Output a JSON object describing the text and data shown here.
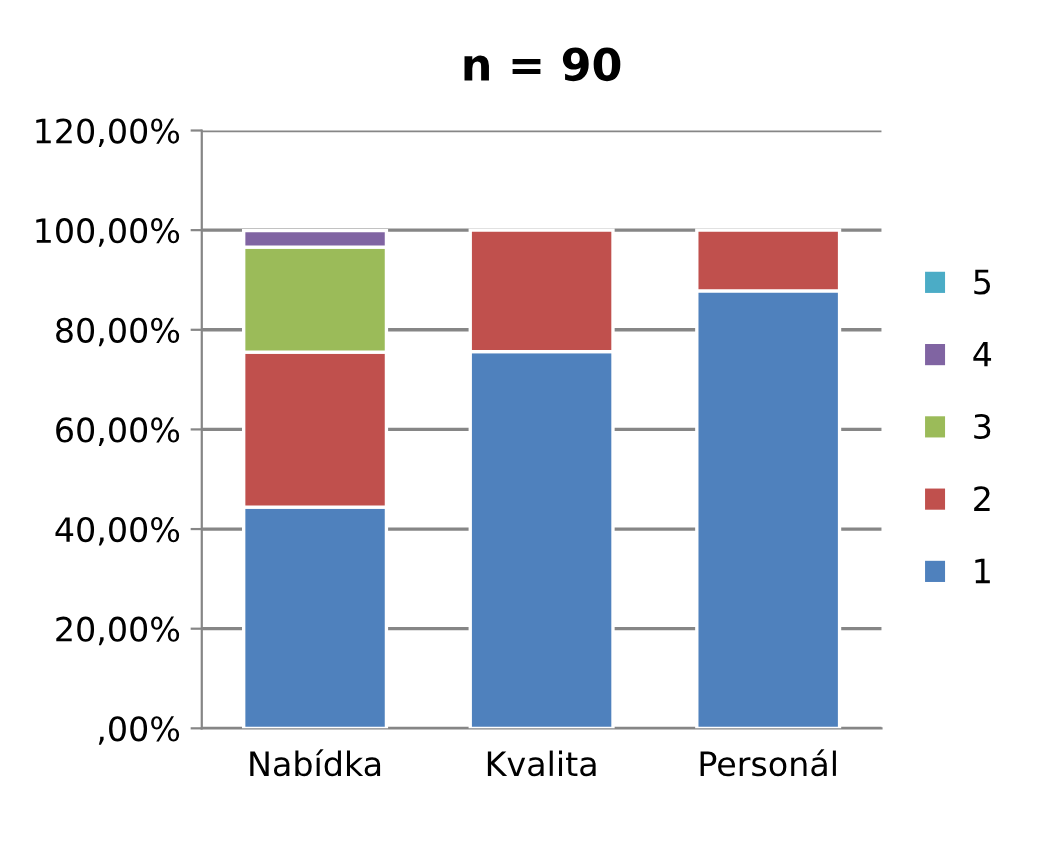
{
  "chart_data": {
    "type": "bar",
    "stacked": true,
    "title": "n = 90",
    "categories": [
      "Nabídka",
      "Kvalita",
      "Personál"
    ],
    "series": [
      {
        "name": "1",
        "color": "#4f81bd",
        "values": [
          44.4,
          75.6,
          87.8
        ]
      },
      {
        "name": "2",
        "color": "#c0504d",
        "values": [
          31.1,
          24.4,
          12.2
        ]
      },
      {
        "name": "3",
        "color": "#9bbb59",
        "values": [
          21.1,
          null,
          null
        ]
      },
      {
        "name": "4",
        "color": "#8064a2",
        "values": [
          3.3,
          null,
          null
        ]
      },
      {
        "name": "5",
        "color": "#4bacc6",
        "values": [
          null,
          null,
          null
        ]
      }
    ],
    "ylim": [
      0,
      120
    ],
    "yticks": [
      {
        "value": 0,
        "label": ",00%"
      },
      {
        "value": 20,
        "label": "20,00%"
      },
      {
        "value": 40,
        "label": "40,00%"
      },
      {
        "value": 60,
        "label": "60,00%"
      },
      {
        "value": 80,
        "label": "80,00%"
      },
      {
        "value": 100,
        "label": "100,00%"
      },
      {
        "value": 120,
        "label": "120,00%"
      }
    ],
    "grid": "y",
    "legend": "right"
  }
}
